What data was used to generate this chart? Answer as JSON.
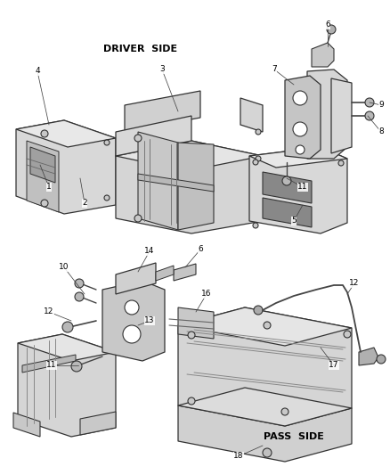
{
  "bg_color": "#ffffff",
  "line_color": "#333333",
  "text_color": "#000000",
  "driver_side_label": "DRIVER  SIDE",
  "pass_side_label": "PASS  SIDE",
  "figsize": [
    4.38,
    5.33
  ],
  "dpi": 100
}
